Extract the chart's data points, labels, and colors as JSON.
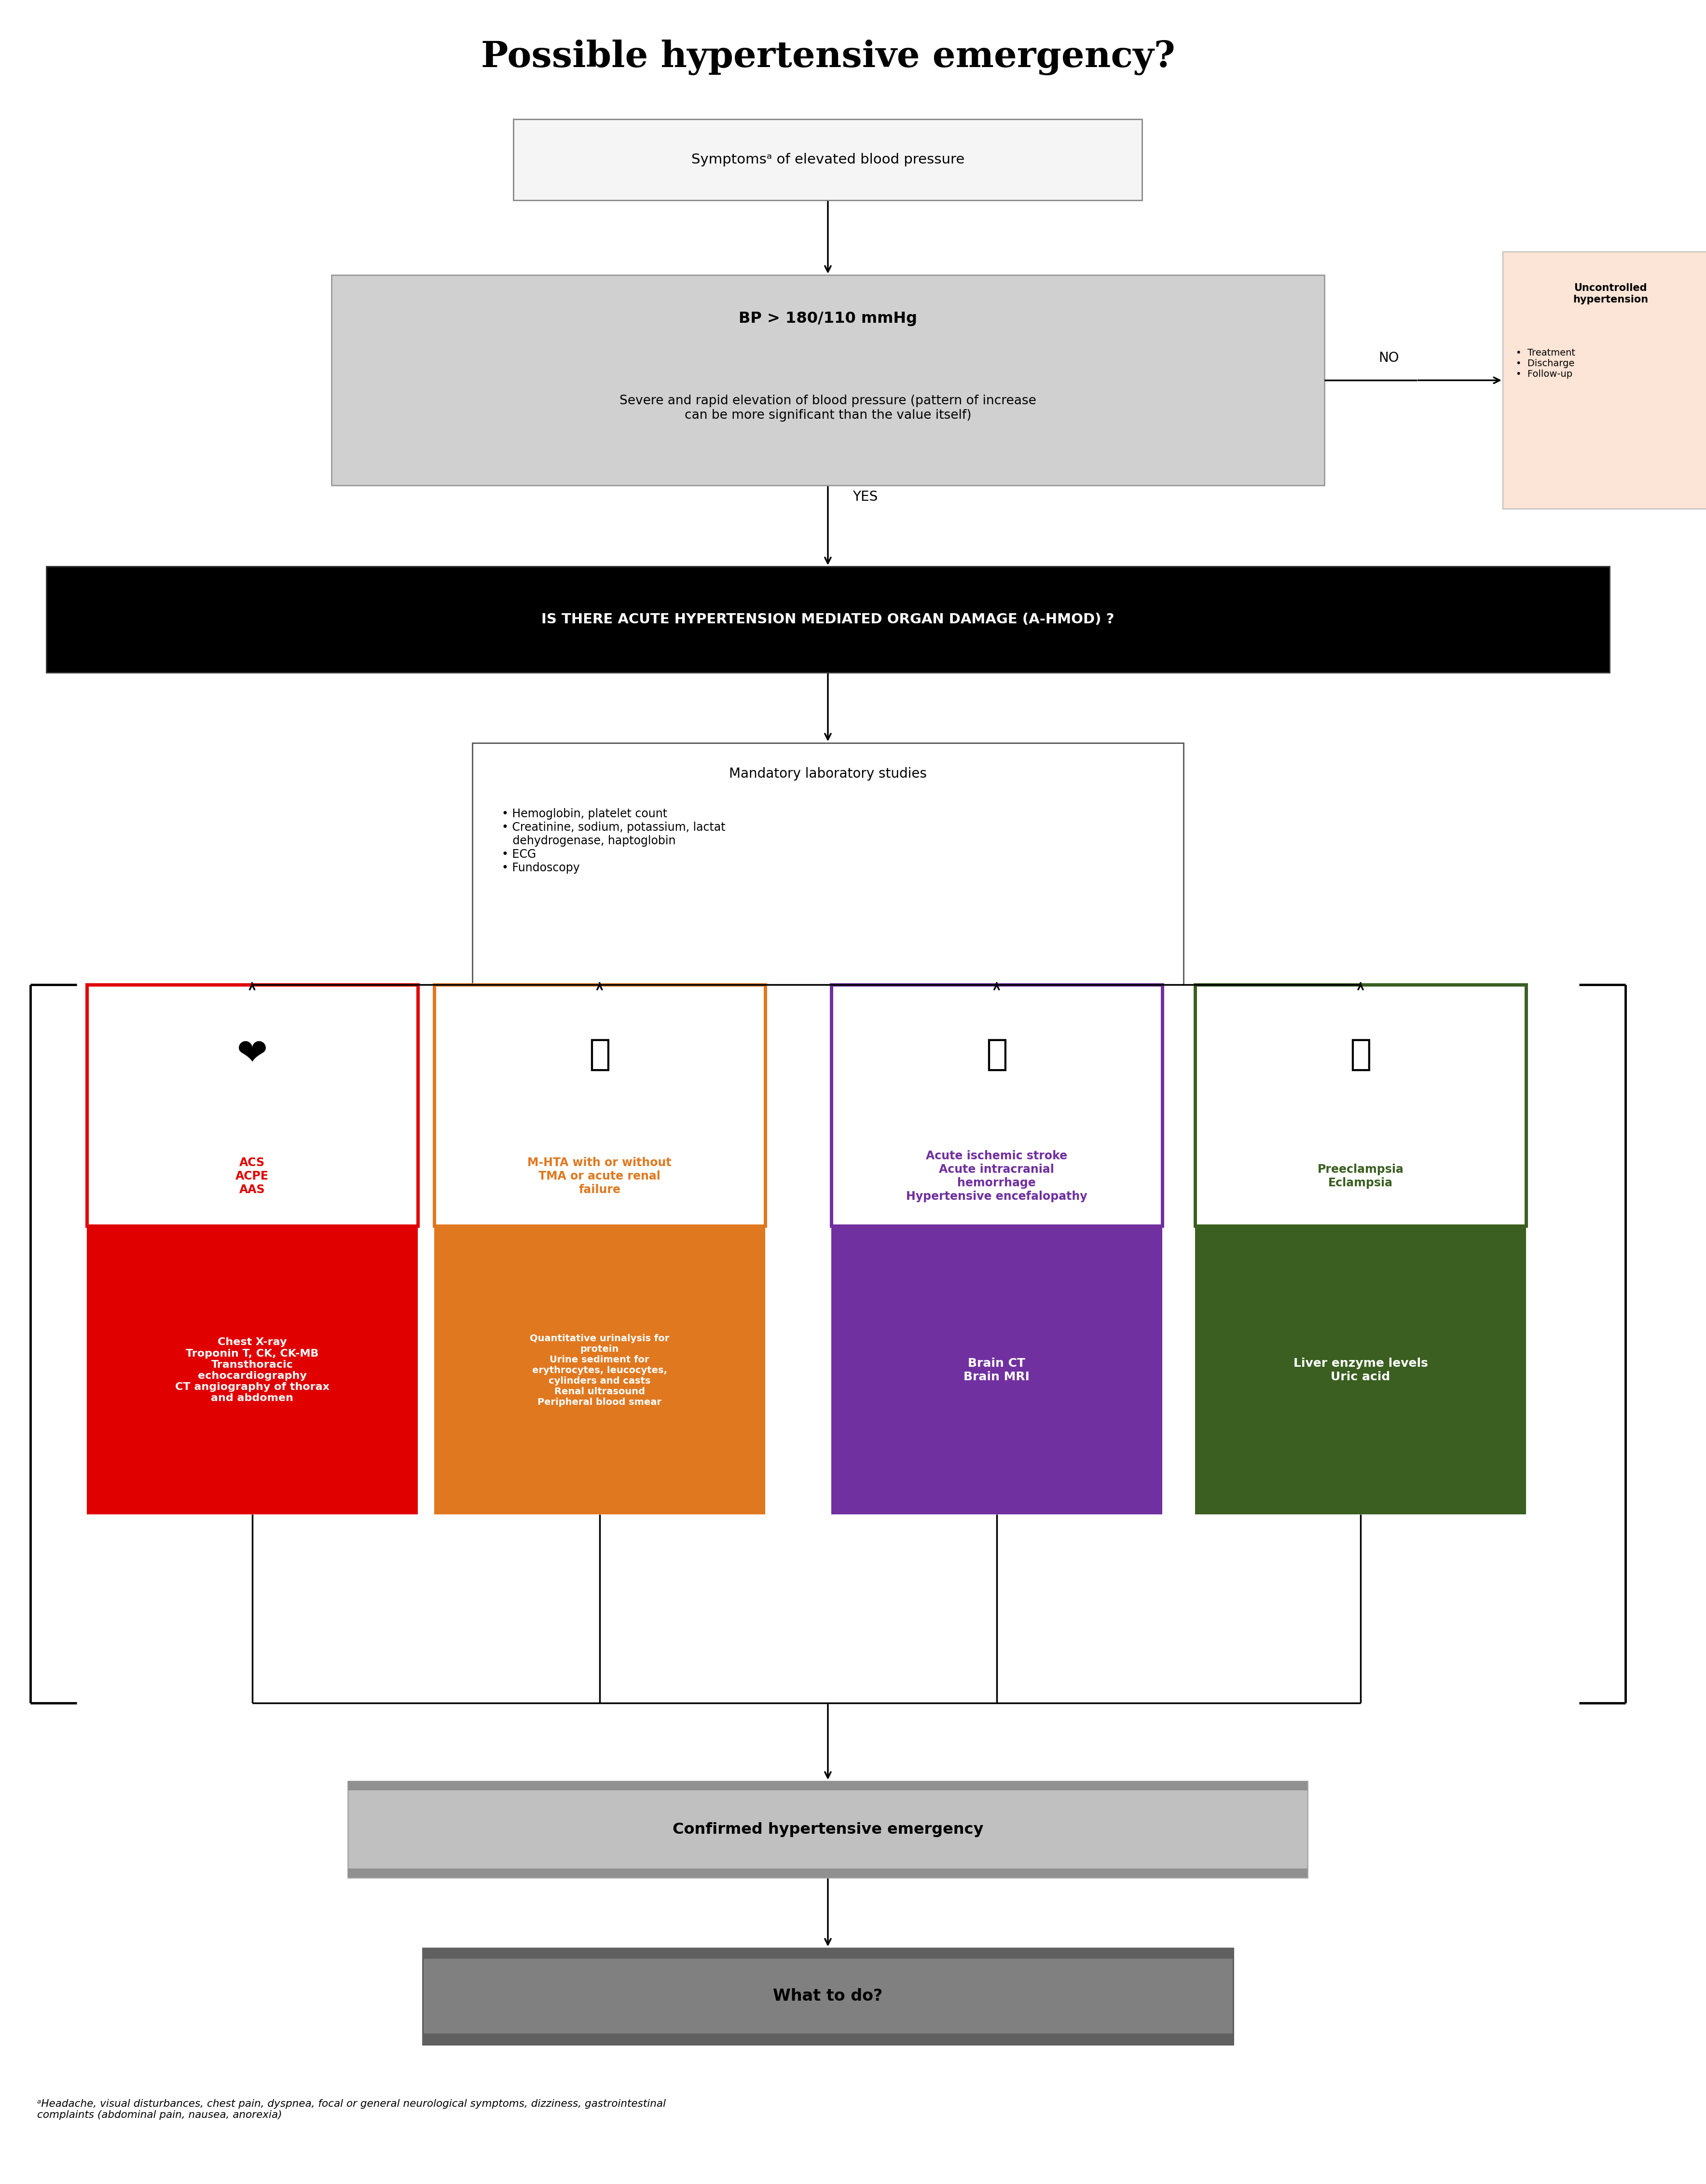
{
  "title": "Possible hypertensive emergency?",
  "bg_color": "#ffffff",
  "box1_text": "Symptomsᵃ of elevated blood pressure",
  "box2_line1": "BP > 180/110 mmHg",
  "box2_line2": "Severe and rapid elevation of blood pressure (pattern of increase\ncan be more significant than the value itself)",
  "box3_text": "IS THERE ACUTE HYPERTENSION MEDIATED ORGAN DAMAGE (A-HMOD) ?",
  "lab_title": "Mandatory laboratory studies",
  "lab_bullets": "• Hemoglobin, platelet count\n• Creatinine, sodium, potassium, lactat\n   dehydrogenase, haptoglobin\n• ECG\n• Fundoscopy",
  "side_box_title": "Uncontrolled\nhypertension",
  "side_box_items": "•  Treatment\n•  Discharge\n•  Follow-up",
  "no_label": "NO",
  "yes_label": "YES",
  "red_label": "ACS\nACPE\nAAS",
  "red_tests": "Chest X-ray\nTroponin T, CK, CK-MB\nTransthoracic\nechocardiography\nCT angiography of thorax\nand abdomen",
  "orange_label": "M-HTA with or without\nTMA or acute renal\nfailure",
  "orange_tests": "Quantitative urinalysis for\nprotein\nUrine sediment for\nerythrocytes, leucocytes,\ncylinders and casts\nRenal ultrasound\nPeripheral blood smear",
  "purple_label": "Acute ischemic stroke\nAcute intracranial\nhemorrhage\nHypertensive encefalopathy",
  "purple_tests": "Brain CT\nBrain MRI",
  "green_label": "Preeclampsia\nEclampsia",
  "green_tests": "Liver enzyme levels\nUric acid",
  "confirm_text": "Confirmed hypertensive emergency",
  "final_text": "What to do?",
  "footnote": "ᵃHeadache, visual disturbances, chest pain, dyspnea, focal or general neurological symptoms, dizziness, gastrointestinal\ncomplaints (abdominal pain, nausea, anorexia)",
  "red": "#e00000",
  "orange": "#e07820",
  "purple": "#7030a0",
  "green": "#3a5f20",
  "side_fill": "#fce4d6",
  "gray1": "#d0d0d0",
  "gray2": "#b0b0b0",
  "gray3": "#808080",
  "confirm_gray": "#c0c0c0",
  "black": "#000000",
  "white": "#ffffff",
  "arrow_lw": 2.5,
  "arrow_ms": 22
}
